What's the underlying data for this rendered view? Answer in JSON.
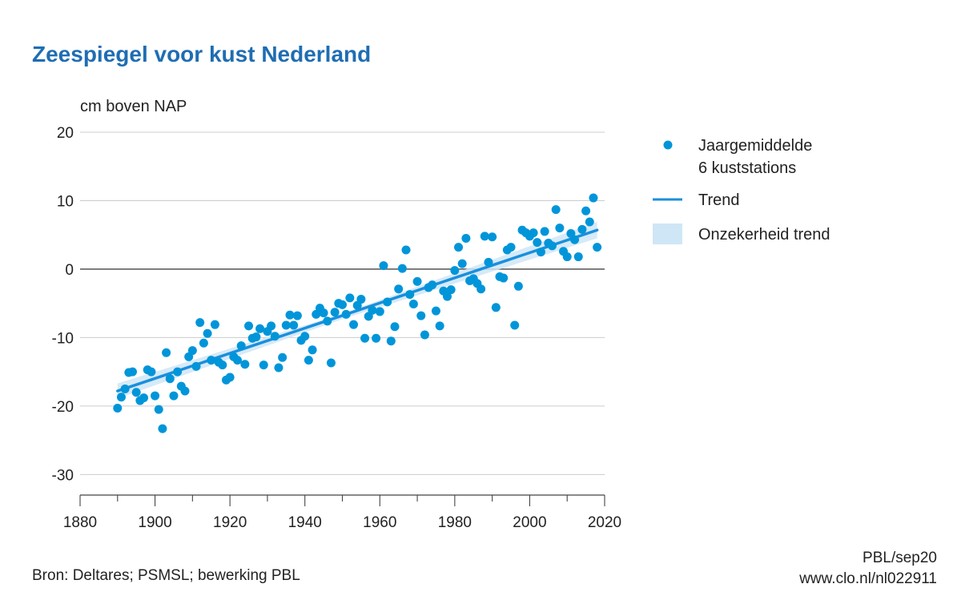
{
  "colors": {
    "title": "#1f6db3",
    "point": "#0095d9",
    "trend": "#1a8fdc",
    "band": "#cfe6f7",
    "grid": "#cccccc",
    "zero": "#444444",
    "axis": "#444444"
  },
  "footer": {
    "source": "Bron: Deltares; PSMSL; bewerking PBL",
    "credit_line1": "PBL/sep20",
    "credit_line2": "www.clo.nl/nl022911"
  },
  "chart_data": {
    "type": "scatter",
    "title": "Zeespiegel voor kust Nederland",
    "ylabel": "cm boven NAP",
    "xlabel": "",
    "xlim": [
      1880,
      2020
    ],
    "ylim": [
      -33,
      20
    ],
    "xticks": [
      1880,
      1900,
      1920,
      1940,
      1960,
      1980,
      2000,
      2020
    ],
    "yticks": [
      20,
      10,
      0,
      -10,
      -20,
      -30
    ],
    "grid": "horizontal",
    "legend_position": "right",
    "legend": {
      "points": [
        "Jaargemiddelde",
        "6 kuststations"
      ],
      "trend": "Trend",
      "band": "Onzekerheid trend"
    },
    "series": [
      {
        "name": "Jaargemiddelde 6 kuststations",
        "kind": "points",
        "points": [
          [
            1890,
            -20.3
          ],
          [
            1891,
            -18.7
          ],
          [
            1892,
            -17.5
          ],
          [
            1893,
            -15.1
          ],
          [
            1894,
            -15.0
          ],
          [
            1895,
            -18.0
          ],
          [
            1896,
            -19.2
          ],
          [
            1897,
            -18.8
          ],
          [
            1898,
            -14.7
          ],
          [
            1899,
            -15.0
          ],
          [
            1900,
            -18.5
          ],
          [
            1901,
            -20.5
          ],
          [
            1902,
            -23.3
          ],
          [
            1903,
            -12.2
          ],
          [
            1904,
            -16.0
          ],
          [
            1905,
            -18.5
          ],
          [
            1906,
            -15.0
          ],
          [
            1907,
            -17.1
          ],
          [
            1908,
            -17.8
          ],
          [
            1909,
            -12.8
          ],
          [
            1910,
            -11.9
          ],
          [
            1911,
            -14.2
          ],
          [
            1912,
            -7.8
          ],
          [
            1913,
            -10.8
          ],
          [
            1914,
            -9.4
          ],
          [
            1915,
            -13.3
          ],
          [
            1916,
            -8.1
          ],
          [
            1917,
            -13.6
          ],
          [
            1918,
            -14.0
          ],
          [
            1919,
            -16.2
          ],
          [
            1920,
            -15.8
          ],
          [
            1921,
            -12.8
          ],
          [
            1922,
            -13.3
          ],
          [
            1923,
            -11.2
          ],
          [
            1924,
            -13.9
          ],
          [
            1925,
            -8.3
          ],
          [
            1926,
            -10.1
          ],
          [
            1927,
            -9.9
          ],
          [
            1928,
            -8.7
          ],
          [
            1929,
            -14.0
          ],
          [
            1930,
            -9.1
          ],
          [
            1931,
            -8.3
          ],
          [
            1932,
            -9.8
          ],
          [
            1933,
            -14.4
          ],
          [
            1934,
            -12.9
          ],
          [
            1935,
            -8.2
          ],
          [
            1936,
            -6.7
          ],
          [
            1937,
            -8.2
          ],
          [
            1938,
            -6.8
          ],
          [
            1939,
            -10.4
          ],
          [
            1940,
            -9.8
          ],
          [
            1941,
            -13.3
          ],
          [
            1942,
            -11.8
          ],
          [
            1943,
            -6.6
          ],
          [
            1944,
            -5.7
          ],
          [
            1945,
            -6.4
          ],
          [
            1946,
            -7.6
          ],
          [
            1947,
            -13.7
          ],
          [
            1948,
            -6.3
          ],
          [
            1949,
            -5.0
          ],
          [
            1950,
            -5.2
          ],
          [
            1951,
            -6.6
          ],
          [
            1952,
            -4.2
          ],
          [
            1953,
            -8.1
          ],
          [
            1954,
            -5.3
          ],
          [
            1955,
            -4.4
          ],
          [
            1956,
            -10.1
          ],
          [
            1957,
            -6.9
          ],
          [
            1958,
            -6.0
          ],
          [
            1959,
            -10.1
          ],
          [
            1960,
            -6.2
          ],
          [
            1961,
            0.5
          ],
          [
            1962,
            -4.8
          ],
          [
            1963,
            -10.5
          ],
          [
            1964,
            -8.4
          ],
          [
            1965,
            -2.9
          ],
          [
            1966,
            0.1
          ],
          [
            1967,
            2.8
          ],
          [
            1968,
            -3.7
          ],
          [
            1969,
            -5.1
          ],
          [
            1970,
            -1.8
          ],
          [
            1971,
            -6.8
          ],
          [
            1972,
            -9.6
          ],
          [
            1973,
            -2.7
          ],
          [
            1974,
            -2.3
          ],
          [
            1975,
            -6.1
          ],
          [
            1976,
            -8.3
          ],
          [
            1977,
            -3.2
          ],
          [
            1978,
            -4.0
          ],
          [
            1979,
            -3.0
          ],
          [
            1980,
            -0.2
          ],
          [
            1981,
            3.2
          ],
          [
            1982,
            0.8
          ],
          [
            1983,
            4.5
          ],
          [
            1984,
            -1.7
          ],
          [
            1985,
            -1.4
          ],
          [
            1986,
            -2.1
          ],
          [
            1987,
            -2.9
          ],
          [
            1988,
            4.8
          ],
          [
            1989,
            1.0
          ],
          [
            1990,
            4.7
          ],
          [
            1991,
            -5.6
          ],
          [
            1992,
            -1.1
          ],
          [
            1993,
            -1.3
          ],
          [
            1994,
            2.8
          ],
          [
            1995,
            3.2
          ],
          [
            1996,
            -8.2
          ],
          [
            1997,
            -2.5
          ],
          [
            1998,
            5.7
          ],
          [
            1999,
            5.3
          ],
          [
            2000,
            4.8
          ],
          [
            2001,
            5.3
          ],
          [
            2002,
            3.9
          ],
          [
            2003,
            2.5
          ],
          [
            2004,
            5.5
          ],
          [
            2005,
            3.8
          ],
          [
            2006,
            3.4
          ],
          [
            2007,
            8.7
          ],
          [
            2008,
            6.0
          ],
          [
            2009,
            2.6
          ],
          [
            2010,
            1.8
          ],
          [
            2011,
            5.2
          ],
          [
            2012,
            4.3
          ],
          [
            2013,
            1.8
          ],
          [
            2014,
            5.8
          ],
          [
            2015,
            8.5
          ],
          [
            2016,
            6.9
          ],
          [
            2017,
            10.4
          ],
          [
            2018,
            3.2
          ]
        ]
      },
      {
        "name": "Trend",
        "kind": "line",
        "x": [
          1890,
          2018
        ],
        "y": [
          -17.8,
          5.7
        ]
      },
      {
        "name": "Onzekerheid trend",
        "kind": "band",
        "x": [
          1890,
          1950,
          2018
        ],
        "lower": [
          -18.9,
          -7.3,
          4.5
        ],
        "upper": [
          -16.7,
          -6.5,
          6.9
        ]
      }
    ]
  }
}
